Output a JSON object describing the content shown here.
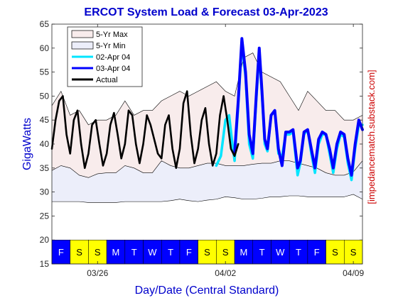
{
  "chart_data": {
    "type": "line",
    "title": "ERCOT System Load & Forecast 03-Apr-2023",
    "xlabel": "Day/Date (Central Standard)",
    "ylabel": "GigaWatts",
    "side_label": "[impedancematch.substack.com]",
    "ylim": [
      15,
      65
    ],
    "xlim": [
      0,
      17
    ],
    "yticks": [
      15,
      20,
      25,
      30,
      35,
      40,
      45,
      50,
      55,
      60,
      65
    ],
    "xticks": [
      {
        "x": 2.5,
        "label": "03/26"
      },
      {
        "x": 9.5,
        "label": "04/02"
      },
      {
        "x": 16.5,
        "label": "04/09"
      }
    ],
    "day_strip": {
      "labels": [
        "F",
        "S",
        "S",
        "M",
        "T",
        "W",
        "T",
        "F",
        "S",
        "S",
        "M",
        "T",
        "W",
        "T",
        "F",
        "S",
        "S"
      ],
      "colors": [
        "#0000ff",
        "#ffff00",
        "#ffff00",
        "#0000ff",
        "#0000ff",
        "#0000ff",
        "#0000ff",
        "#0000ff",
        "#ffff00",
        "#ffff00",
        "#0000ff",
        "#0000ff",
        "#0000ff",
        "#0000ff",
        "#0000ff",
        "#ffff00",
        "#ffff00"
      ],
      "text_colors": [
        "#ffffff",
        "#000000",
        "#000000",
        "#ffffff",
        "#ffffff",
        "#ffffff",
        "#ffffff",
        "#ffffff",
        "#000000",
        "#000000",
        "#ffffff",
        "#ffffff",
        "#ffffff",
        "#ffffff",
        "#ffffff",
        "#000000",
        "#000000"
      ]
    },
    "legend": [
      {
        "label": "5-Yr Max",
        "kind": "patch",
        "color": "#f8ecec"
      },
      {
        "label": "5-Yr Min",
        "kind": "patch",
        "color": "#eceefa"
      },
      {
        "label": "02-Apr 04",
        "kind": "line",
        "color": "#00e5ff"
      },
      {
        "label": "03-Apr 04",
        "kind": "line",
        "color": "#0000ff"
      },
      {
        "label": "Actual",
        "kind": "line",
        "color": "#000000"
      }
    ],
    "series": [
      {
        "name": "5-Yr Max",
        "color": "#f8ecec",
        "x": [
          0,
          0.5,
          1,
          1.5,
          2,
          2.5,
          3,
          3.5,
          4,
          4.5,
          5,
          5.5,
          6,
          6.5,
          7,
          7.5,
          8,
          8.5,
          9,
          9.5,
          10,
          10.5,
          11,
          11.5,
          12,
          12.5,
          13,
          13.5,
          14,
          14.5,
          15,
          15.5,
          16,
          16.5,
          17
        ],
        "values": [
          48,
          51,
          46,
          47,
          44,
          45,
          45,
          46,
          49,
          46,
          47,
          47,
          49,
          50,
          51,
          50,
          51,
          52,
          53,
          51,
          50,
          58,
          59,
          55,
          54,
          53,
          50,
          47,
          51,
          49,
          47,
          47,
          45,
          45,
          46
        ]
      },
      {
        "name": "5-Yr Min",
        "color": "#eceefa",
        "x": [
          0,
          0.5,
          1,
          1.5,
          2,
          2.5,
          3,
          3.5,
          4,
          4.5,
          5,
          5.5,
          6,
          6.5,
          7,
          7.5,
          8,
          8.5,
          9,
          9.5,
          10,
          10.5,
          11,
          11.5,
          12,
          12.5,
          13,
          13.5,
          14,
          14.5,
          15,
          15.5,
          16,
          16.5,
          17
        ],
        "upper": [
          34.5,
          35.5,
          35,
          33.5,
          33,
          33.8,
          34,
          34,
          35.5,
          35,
          34,
          34,
          36.5,
          35.5,
          35,
          35,
          35.5,
          36,
          36,
          35.5,
          35.5,
          35.5,
          35.8,
          36,
          36,
          36.5,
          36.5,
          36,
          35.5,
          35,
          34,
          33.5,
          33.5,
          34.2,
          36.5
        ],
        "lower": [
          28,
          28,
          28,
          28,
          27.8,
          27.8,
          27.8,
          27.8,
          28,
          28,
          28,
          28,
          28,
          28.2,
          28.5,
          28.2,
          28,
          28.3,
          28.5,
          29,
          28.8,
          28.5,
          28.5,
          28.7,
          29,
          29,
          29.2,
          29.2,
          29,
          29,
          29,
          29,
          29,
          29.5,
          28.5
        ]
      },
      {
        "name": "02-Apr 04",
        "color": "#00e5ff",
        "x": [
          9.0,
          9.25,
          9.5,
          9.7,
          9.85,
          10.0,
          10.2,
          10.4,
          10.6,
          10.8,
          11.0,
          11.2,
          11.35,
          11.5,
          11.65,
          11.8,
          12.0,
          12.2,
          12.4,
          12.6,
          12.8,
          13.0,
          13.2,
          13.45,
          13.6,
          13.8,
          14.0,
          14.2,
          14.4,
          14.6,
          14.8,
          15.0,
          15.2,
          15.4,
          15.6,
          15.8,
          16.0,
          16.2,
          16.4,
          16.6,
          16.8,
          17.0
        ],
        "values": [
          35.5,
          37.5,
          45,
          46,
          41,
          36.5,
          48,
          61,
          54,
          40,
          37,
          50,
          59,
          50,
          40,
          38.5,
          46,
          47,
          38,
          37.5,
          42,
          42,
          42.5,
          33.5,
          36,
          42,
          43,
          38,
          34,
          40,
          42,
          42,
          38,
          34,
          39,
          42,
          41.5,
          36,
          32.5,
          39,
          44,
          44
        ]
      },
      {
        "name": "03-Apr 04",
        "color": "#0000ff",
        "x": [
          10.0,
          10.2,
          10.4,
          10.6,
          10.8,
          11.0,
          11.2,
          11.35,
          11.5,
          11.65,
          11.8,
          12.0,
          12.2,
          12.4,
          12.6,
          12.8,
          13.0,
          13.2,
          13.45,
          13.6,
          13.8,
          14.0,
          14.2,
          14.4,
          14.6,
          14.8,
          15.0,
          15.2,
          15.4,
          15.6,
          15.8,
          16.0,
          16.2,
          16.4,
          16.6,
          16.8,
          17.0
        ],
        "values": [
          38,
          49,
          62,
          55,
          42,
          38,
          51,
          60,
          51,
          41,
          39,
          46,
          47,
          39,
          35.5,
          42.5,
          42.5,
          43,
          35,
          36.5,
          42.5,
          43,
          39,
          35,
          41,
          42.5,
          42,
          39,
          35,
          40,
          42.5,
          42,
          37,
          33.5,
          40,
          45,
          43
        ]
      },
      {
        "name": "Actual",
        "color": "#000000",
        "x": [
          0,
          0.2,
          0.4,
          0.6,
          0.8,
          1.0,
          1.2,
          1.4,
          1.6,
          1.8,
          2.0,
          2.2,
          2.4,
          2.6,
          2.8,
          3.0,
          3.2,
          3.4,
          3.6,
          3.8,
          4.0,
          4.2,
          4.4,
          4.6,
          4.8,
          5.0,
          5.2,
          5.4,
          5.6,
          5.8,
          6.0,
          6.2,
          6.4,
          6.6,
          6.8,
          7.0,
          7.2,
          7.4,
          7.6,
          7.8,
          8.0,
          8.2,
          8.4,
          8.6,
          8.8,
          9.0,
          9.2,
          9.4,
          9.6,
          9.8,
          10.0,
          10.2
        ],
        "values": [
          39,
          45,
          49,
          50,
          42,
          38,
          45,
          47,
          40,
          35,
          38,
          44,
          45,
          40,
          35.5,
          38,
          44,
          46.5,
          42,
          37,
          40,
          47,
          46,
          40,
          36,
          40,
          46,
          44,
          41,
          38,
          37,
          44,
          46,
          39,
          35,
          39,
          48.5,
          51,
          42,
          36,
          39,
          45,
          47.5,
          40,
          35.5,
          38,
          46,
          50,
          45,
          39,
          37.5,
          40
        ]
      }
    ]
  }
}
